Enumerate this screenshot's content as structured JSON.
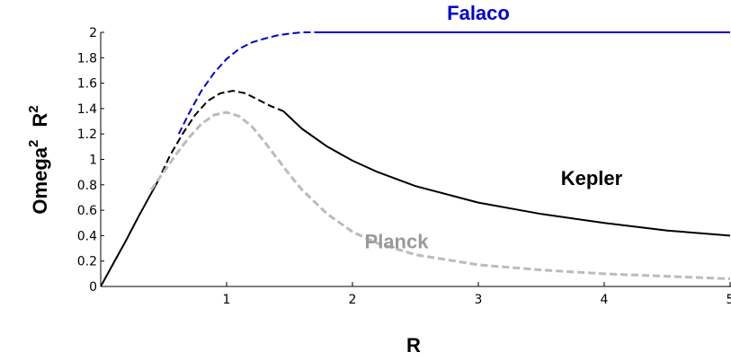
{
  "chart_data": {
    "type": "line",
    "xlabel": "R",
    "ylabel_base": "Omega",
    "ylabel_exp": "2",
    "ylabel_r": "R",
    "ylabel_r_exp": "2",
    "xlim": [
      0,
      5
    ],
    "ylim": [
      0,
      2
    ],
    "x_ticks": [
      "1",
      "2",
      "3",
      "4",
      "5"
    ],
    "y_ticks": [
      "0",
      "0.2",
      "0.4",
      "0.6",
      "0.8",
      "1",
      "1.2",
      "1.4",
      "1.6",
      "1.8",
      "2"
    ],
    "grid": false,
    "series": [
      {
        "name": "Falaco",
        "color": "#0000cc",
        "segments": [
          {
            "style": "dashed",
            "points": [
              [
                0.62,
                1.2
              ],
              [
                0.7,
                1.36
              ],
              [
                0.8,
                1.54
              ],
              [
                0.9,
                1.68
              ],
              [
                1.0,
                1.79
              ],
              [
                1.1,
                1.87
              ],
              [
                1.2,
                1.92
              ],
              [
                1.3,
                1.95
              ],
              [
                1.4,
                1.975
              ],
              [
                1.5,
                1.99
              ],
              [
                1.6,
                2.0
              ],
              [
                1.7,
                2.0
              ]
            ]
          },
          {
            "style": "solid",
            "points": [
              [
                1.7,
                2.0
              ],
              [
                5.0,
                2.0
              ]
            ]
          }
        ]
      },
      {
        "name": "Kepler",
        "color": "#000000",
        "segments": [
          {
            "style": "solid",
            "points": [
              [
                0,
                0
              ],
              [
                0.1,
                0.18
              ],
              [
                0.2,
                0.36
              ],
              [
                0.3,
                0.55
              ],
              [
                0.4,
                0.73
              ],
              [
                0.45,
                0.82
              ]
            ]
          },
          {
            "style": "dashed",
            "points": [
              [
                0.45,
                0.82
              ],
              [
                0.55,
                1.03
              ],
              [
                0.65,
                1.2
              ],
              [
                0.75,
                1.35
              ],
              [
                0.85,
                1.46
              ],
              [
                0.95,
                1.52
              ],
              [
                1.05,
                1.54
              ],
              [
                1.15,
                1.52
              ],
              [
                1.25,
                1.47
              ],
              [
                1.35,
                1.42
              ],
              [
                1.45,
                1.38
              ]
            ]
          },
          {
            "style": "solid",
            "points": [
              [
                1.45,
                1.38
              ],
              [
                1.6,
                1.24
              ],
              [
                1.8,
                1.1
              ],
              [
                2.0,
                0.99
              ],
              [
                2.2,
                0.9
              ],
              [
                2.5,
                0.79
              ],
              [
                3.0,
                0.66
              ],
              [
                3.5,
                0.57
              ],
              [
                4.0,
                0.5
              ],
              [
                4.5,
                0.44
              ],
              [
                5.0,
                0.4
              ]
            ]
          }
        ]
      },
      {
        "name": "Planck",
        "color": "#bbbbbb",
        "segments": [
          {
            "style": "dashed",
            "points": [
              [
                0.4,
                0.76
              ],
              [
                0.5,
                0.9
              ],
              [
                0.6,
                1.04
              ],
              [
                0.7,
                1.17
              ],
              [
                0.8,
                1.28
              ],
              [
                0.9,
                1.35
              ],
              [
                1.0,
                1.37
              ],
              [
                1.1,
                1.34
              ],
              [
                1.2,
                1.26
              ],
              [
                1.3,
                1.14
              ],
              [
                1.4,
                1.01
              ],
              [
                1.5,
                0.88
              ],
              [
                1.6,
                0.76
              ],
              [
                1.8,
                0.57
              ],
              [
                2.0,
                0.43
              ],
              [
                2.2,
                0.34
              ],
              [
                2.5,
                0.25
              ],
              [
                3.0,
                0.17
              ],
              [
                3.5,
                0.13
              ],
              [
                4.0,
                0.1
              ],
              [
                4.5,
                0.08
              ],
              [
                5.0,
                0.06
              ]
            ]
          }
        ]
      }
    ],
    "labels": [
      {
        "text": "Falaco",
        "color": "#0000cc",
        "x": 3.0,
        "y": 2.1
      },
      {
        "text": "Kepler",
        "color": "#000000",
        "x": 3.9,
        "y": 0.8
      },
      {
        "text": "Planck",
        "color": "#999999",
        "x": 2.35,
        "y": 0.3
      }
    ]
  }
}
